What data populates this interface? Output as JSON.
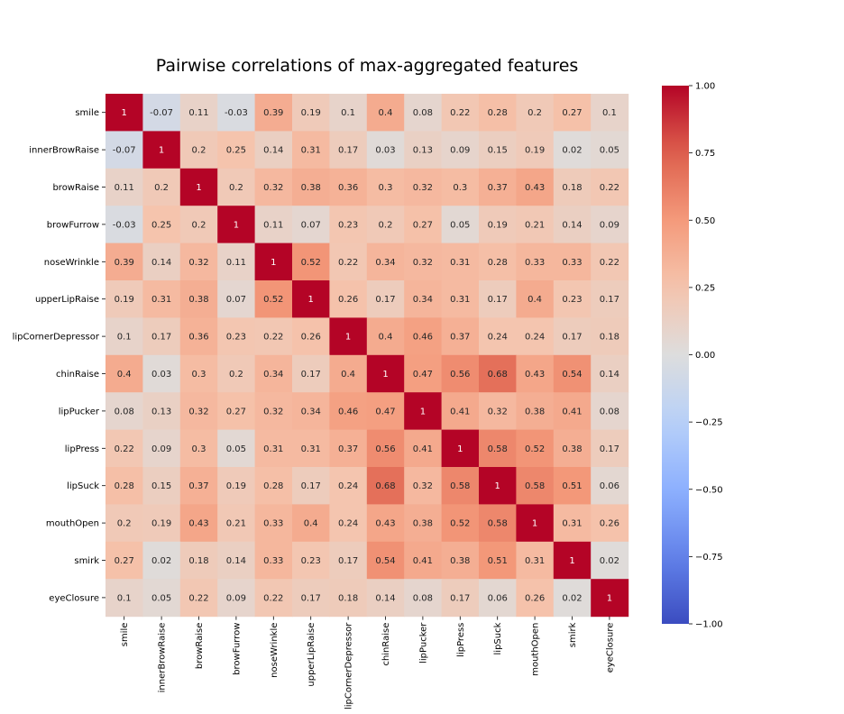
{
  "chart_data": {
    "type": "heatmap",
    "title": "Pairwise correlations of max-aggregated features",
    "features": [
      "smile",
      "innerBrowRaise",
      "browRaise",
      "browFurrow",
      "noseWrinkle",
      "upperLipRaise",
      "lipCornerDepressor",
      "chinRaise",
      "lipPucker",
      "lipPress",
      "lipSuck",
      "mouthOpen",
      "smirk",
      "eyeClosure"
    ],
    "values": [
      [
        1,
        -0.07,
        0.11,
        -0.03,
        0.39,
        0.19,
        0.1,
        0.4,
        0.08,
        0.22,
        0.28,
        0.2,
        0.27,
        0.1
      ],
      [
        -0.07,
        1,
        0.2,
        0.25,
        0.14,
        0.31,
        0.17,
        0.03,
        0.13,
        0.09,
        0.15,
        0.19,
        0.02,
        0.05
      ],
      [
        0.11,
        0.2,
        1,
        0.2,
        0.32,
        0.38,
        0.36,
        0.3,
        0.32,
        0.3,
        0.37,
        0.43,
        0.18,
        0.22
      ],
      [
        -0.03,
        0.25,
        0.2,
        1,
        0.11,
        0.07,
        0.23,
        0.2,
        0.27,
        0.05,
        0.19,
        0.21,
        0.14,
        0.09
      ],
      [
        0.39,
        0.14,
        0.32,
        0.11,
        1,
        0.52,
        0.22,
        0.34,
        0.32,
        0.31,
        0.28,
        0.33,
        0.33,
        0.22
      ],
      [
        0.19,
        0.31,
        0.38,
        0.07,
        0.52,
        1,
        0.26,
        0.17,
        0.34,
        0.31,
        0.17,
        0.4,
        0.23,
        0.17
      ],
      [
        0.1,
        0.17,
        0.36,
        0.23,
        0.22,
        0.26,
        1,
        0.4,
        0.46,
        0.37,
        0.24,
        0.24,
        0.17,
        0.18
      ],
      [
        0.4,
        0.03,
        0.3,
        0.2,
        0.34,
        0.17,
        0.4,
        1,
        0.47,
        0.56,
        0.68,
        0.43,
        0.54,
        0.14
      ],
      [
        0.08,
        0.13,
        0.32,
        0.27,
        0.32,
        0.34,
        0.46,
        0.47,
        1,
        0.41,
        0.32,
        0.38,
        0.41,
        0.08
      ],
      [
        0.22,
        0.09,
        0.3,
        0.05,
        0.31,
        0.31,
        0.37,
        0.56,
        0.41,
        1,
        0.58,
        0.52,
        0.38,
        0.17
      ],
      [
        0.28,
        0.15,
        0.37,
        0.19,
        0.28,
        0.17,
        0.24,
        0.68,
        0.32,
        0.58,
        1,
        0.58,
        0.51,
        0.06
      ],
      [
        0.2,
        0.19,
        0.43,
        0.21,
        0.33,
        0.4,
        0.24,
        0.43,
        0.38,
        0.52,
        0.58,
        1,
        0.31,
        0.26
      ],
      [
        0.27,
        0.02,
        0.18,
        0.14,
        0.33,
        0.23,
        0.17,
        0.54,
        0.41,
        0.38,
        0.51,
        0.31,
        1,
        0.02
      ],
      [
        0.1,
        0.05,
        0.22,
        0.09,
        0.22,
        0.17,
        0.18,
        0.14,
        0.08,
        0.17,
        0.06,
        0.26,
        0.02,
        1
      ]
    ],
    "colormap": "coolwarm",
    "vmin": -1.0,
    "vmax": 1.0,
    "colorbar_ticks": [
      "1.00",
      "0.75",
      "0.50",
      "0.25",
      "0.00",
      "−0.25",
      "−0.50",
      "−0.75",
      "−1.00"
    ],
    "colorbar_tick_values": [
      1.0,
      0.75,
      0.5,
      0.25,
      0.0,
      -0.25,
      -0.5,
      -0.75,
      -1.0
    ],
    "grid": false,
    "colorbar_placement": "right"
  }
}
